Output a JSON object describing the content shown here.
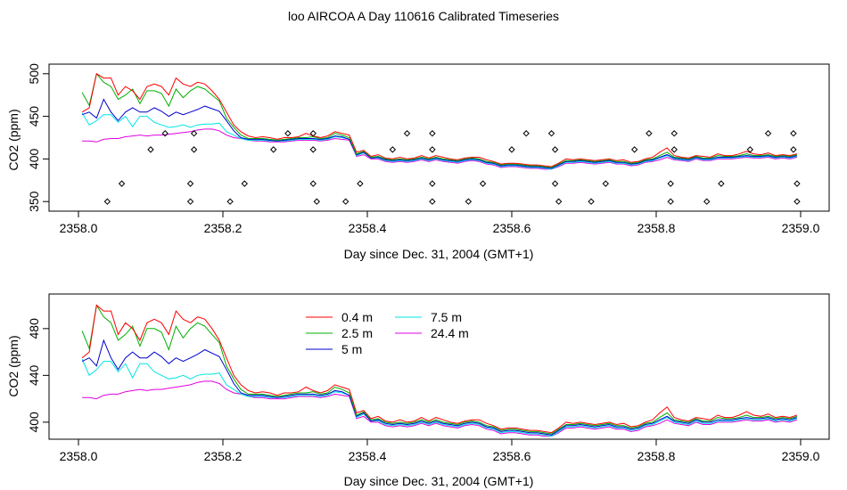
{
  "title": "loo AIRCOA A  Day 110616  Calibrated Timeseries",
  "colors": {
    "s1": "#ff0000",
    "s2": "#00b000",
    "s3": "#0000cc",
    "s4": "#00e5e5",
    "s5": "#e000e0",
    "diamonds": "#000000"
  },
  "chart_data": [
    {
      "type": "line",
      "xlabel": "Day since Dec. 31, 2004 (GMT+1)",
      "ylabel": "CO2 (ppm)",
      "xlim": [
        2358.0,
        2359.0
      ],
      "ylim": [
        345,
        505
      ],
      "xticks": [
        2358.0,
        2358.2,
        2358.4,
        2358.6,
        2358.8,
        2359.0
      ],
      "xtick_labels": [
        "2358.0",
        "2358.2",
        "2358.4",
        "2358.6",
        "2358.8",
        "2359.0"
      ],
      "yticks": [
        350,
        400,
        450,
        500
      ],
      "ytick_labels": [
        "350",
        "400",
        "450",
        "500"
      ],
      "grid": false,
      "legend": "none",
      "scatter_markers": {
        "shape": "diamond",
        "points": [
          [
            2358.04,
            350
          ],
          [
            2358.06,
            371
          ],
          [
            2358.1,
            411
          ],
          [
            2358.12,
            430
          ],
          [
            2358.155,
            350
          ],
          [
            2358.155,
            371
          ],
          [
            2358.16,
            411
          ],
          [
            2358.16,
            430
          ],
          [
            2358.21,
            350
          ],
          [
            2358.23,
            371
          ],
          [
            2358.27,
            411
          ],
          [
            2358.29,
            430
          ],
          [
            2358.325,
            430
          ],
          [
            2358.325,
            411
          ],
          [
            2358.325,
            371
          ],
          [
            2358.33,
            350
          ],
          [
            2358.37,
            350
          ],
          [
            2358.39,
            371
          ],
          [
            2358.435,
            411
          ],
          [
            2358.455,
            430
          ],
          [
            2358.49,
            350
          ],
          [
            2358.49,
            371
          ],
          [
            2358.49,
            411
          ],
          [
            2358.49,
            430
          ],
          [
            2358.54,
            350
          ],
          [
            2358.56,
            371
          ],
          [
            2358.6,
            411
          ],
          [
            2358.62,
            430
          ],
          [
            2358.655,
            430
          ],
          [
            2358.66,
            411
          ],
          [
            2358.66,
            371
          ],
          [
            2358.665,
            350
          ],
          [
            2358.71,
            350
          ],
          [
            2358.73,
            371
          ],
          [
            2358.77,
            411
          ],
          [
            2358.79,
            430
          ],
          [
            2358.82,
            350
          ],
          [
            2358.82,
            371
          ],
          [
            2358.825,
            411
          ],
          [
            2358.825,
            430
          ],
          [
            2358.87,
            350
          ],
          [
            2358.89,
            371
          ],
          [
            2358.93,
            411
          ],
          [
            2358.955,
            430
          ],
          [
            2358.99,
            430
          ],
          [
            2358.99,
            411
          ],
          [
            2358.995,
            371
          ],
          [
            2358.995,
            350
          ]
        ]
      }
    },
    {
      "type": "line",
      "xlabel": "Day since Dec. 31, 2004 (GMT+1)",
      "ylabel": "CO2 (ppm)",
      "xlim": [
        2358.0,
        2359.0
      ],
      "ylim": [
        390,
        505
      ],
      "xticks": [
        2358.0,
        2358.2,
        2358.4,
        2358.6,
        2358.8,
        2359.0
      ],
      "xtick_labels": [
        "2358.0",
        "2358.2",
        "2358.4",
        "2358.6",
        "2358.8",
        "2359.0"
      ],
      "yticks": [
        400,
        440,
        480
      ],
      "ytick_labels": [
        "400",
        "440",
        "480"
      ],
      "grid": false,
      "legend": "top-left",
      "series_names": [
        "0.4 m",
        "2.5 m",
        "5 m",
        "7.5 m",
        "24.4 m"
      ]
    }
  ],
  "series": {
    "x": [
      2358.005,
      2358.015,
      2358.025,
      2358.035,
      2358.045,
      2358.055,
      2358.065,
      2358.075,
      2358.085,
      2358.095,
      2358.105,
      2358.115,
      2358.125,
      2358.135,
      2358.145,
      2358.155,
      2358.165,
      2358.175,
      2358.185,
      2358.195,
      2358.205,
      2358.215,
      2358.225,
      2358.235,
      2358.245,
      2358.255,
      2358.265,
      2358.275,
      2358.285,
      2358.295,
      2358.305,
      2358.315,
      2358.325,
      2358.335,
      2358.345,
      2358.355,
      2358.365,
      2358.375,
      2358.385,
      2358.395,
      2358.405,
      2358.415,
      2358.425,
      2358.435,
      2358.445,
      2358.455,
      2358.465,
      2358.475,
      2358.485,
      2358.495,
      2358.505,
      2358.515,
      2358.525,
      2358.535,
      2358.545,
      2358.555,
      2358.565,
      2358.575,
      2358.585,
      2358.595,
      2358.605,
      2358.615,
      2358.625,
      2358.635,
      2358.645,
      2358.655,
      2358.665,
      2358.675,
      2358.685,
      2358.695,
      2358.705,
      2358.715,
      2358.725,
      2358.735,
      2358.745,
      2358.755,
      2358.765,
      2358.775,
      2358.785,
      2358.795,
      2358.805,
      2358.815,
      2358.825,
      2358.835,
      2358.845,
      2358.855,
      2358.865,
      2358.875,
      2358.885,
      2358.895,
      2358.905,
      2358.915,
      2358.925,
      2358.935,
      2358.945,
      2358.955,
      2358.965,
      2358.975,
      2358.985,
      2358.995
    ],
    "s1": [
      455,
      460,
      500,
      495,
      495,
      475,
      485,
      480,
      470,
      485,
      488,
      485,
      475,
      495,
      488,
      485,
      490,
      488,
      480,
      470,
      455,
      440,
      432,
      427,
      425,
      426,
      425,
      423,
      425,
      425,
      426,
      430,
      427,
      425,
      427,
      432,
      430,
      428,
      408,
      410,
      403,
      405,
      401,
      400,
      402,
      400,
      401,
      404,
      401,
      404,
      402,
      400,
      399,
      401,
      402,
      402,
      399,
      397,
      394,
      395,
      395,
      394,
      393,
      393,
      392,
      391,
      395,
      400,
      399,
      400,
      399,
      398,
      399,
      400,
      398,
      399,
      396,
      397,
      400,
      402,
      408,
      413,
      404,
      402,
      401,
      404,
      403,
      402,
      406,
      404,
      404,
      406,
      409,
      406,
      405,
      407,
      404,
      405,
      404,
      406
    ],
    "s2": [
      478,
      463,
      500,
      490,
      485,
      470,
      475,
      482,
      465,
      480,
      480,
      477,
      462,
      482,
      472,
      480,
      485,
      482,
      475,
      468,
      448,
      437,
      428,
      424,
      424,
      424,
      423,
      422,
      423,
      424,
      425,
      425,
      426,
      424,
      425,
      430,
      428,
      425,
      406,
      409,
      402,
      403,
      400,
      399,
      400,
      399,
      400,
      402,
      400,
      402,
      400,
      399,
      398,
      400,
      401,
      400,
      397,
      396,
      393,
      394,
      394,
      393,
      392,
      392,
      391,
      390,
      394,
      398,
      398,
      399,
      398,
      397,
      398,
      399,
      397,
      397,
      395,
      396,
      399,
      400,
      404,
      408,
      402,
      401,
      400,
      403,
      401,
      401,
      404,
      403,
      403,
      404,
      406,
      404,
      404,
      405,
      403,
      404,
      403,
      405
    ],
    "s3": [
      452,
      455,
      448,
      470,
      455,
      445,
      455,
      460,
      455,
      455,
      460,
      456,
      450,
      455,
      452,
      455,
      458,
      462,
      459,
      456,
      445,
      433,
      425,
      423,
      423,
      423,
      422,
      421,
      422,
      423,
      424,
      424,
      424,
      423,
      424,
      427,
      426,
      423,
      405,
      408,
      401,
      402,
      399,
      398,
      399,
      398,
      399,
      401,
      399,
      401,
      399,
      398,
      397,
      399,
      400,
      399,
      396,
      395,
      392,
      393,
      393,
      392,
      391,
      391,
      390,
      389,
      393,
      397,
      397,
      398,
      397,
      396,
      397,
      398,
      396,
      396,
      394,
      395,
      398,
      399,
      402,
      405,
      401,
      400,
      399,
      402,
      400,
      400,
      402,
      402,
      402,
      403,
      404,
      403,
      403,
      404,
      402,
      403,
      402,
      404
    ],
    "s4": [
      454,
      440,
      445,
      452,
      452,
      443,
      450,
      438,
      450,
      450,
      443,
      440,
      437,
      438,
      440,
      437,
      440,
      441,
      441,
      442,
      432,
      428,
      424,
      422,
      422,
      422,
      421,
      421,
      421,
      422,
      423,
      423,
      423,
      422,
      423,
      426,
      425,
      423,
      404,
      407,
      401,
      401,
      398,
      397,
      398,
      397,
      398,
      400,
      398,
      400,
      398,
      397,
      396,
      398,
      399,
      398,
      395,
      394,
      391,
      392,
      392,
      391,
      390,
      390,
      389,
      388,
      392,
      396,
      396,
      397,
      396,
      395,
      396,
      397,
      395,
      395,
      393,
      394,
      397,
      398,
      401,
      404,
      400,
      399,
      398,
      401,
      399,
      399,
      401,
      401,
      401,
      402,
      403,
      402,
      402,
      403,
      401,
      402,
      401,
      403
    ],
    "s5": [
      421,
      421,
      420,
      423,
      424,
      424,
      426,
      427,
      428,
      427,
      428,
      428,
      429,
      430,
      431,
      432,
      434,
      435,
      435,
      433,
      428,
      425,
      424,
      422,
      421,
      421,
      420,
      420,
      420,
      421,
      422,
      422,
      422,
      421,
      422,
      424,
      423,
      422,
      403,
      405,
      400,
      400,
      397,
      396,
      397,
      396,
      397,
      399,
      397,
      399,
      397,
      396,
      395,
      397,
      398,
      397,
      394,
      393,
      390,
      391,
      391,
      390,
      389,
      389,
      388,
      388,
      391,
      395,
      395,
      396,
      395,
      394,
      395,
      396,
      394,
      394,
      392,
      393,
      396,
      397,
      399,
      402,
      399,
      398,
      397,
      400,
      398,
      398,
      400,
      400,
      400,
      401,
      402,
      401,
      401,
      402,
      400,
      401,
      400,
      402
    ]
  }
}
